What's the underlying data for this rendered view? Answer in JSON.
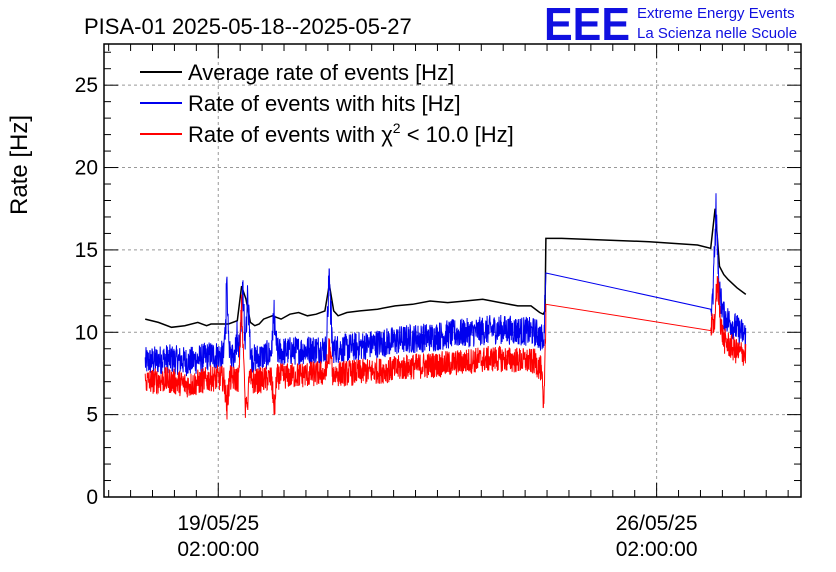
{
  "header": {
    "title": "PISA-01 2025-05-18--2025-05-27",
    "logo_letters": "EEE",
    "logo_line1": "Extreme Energy Events",
    "logo_line2": "La Scienza nelle Scuole"
  },
  "colors": {
    "average": "#000000",
    "hits": "#0000ee",
    "chi2": "#ff0000",
    "logo": "#1010e0"
  },
  "chart_data": {
    "type": "line",
    "ylabel": "Rate [Hz]",
    "xlabel": "",
    "ylim": [
      0,
      27.5
    ],
    "y_ticks": [
      0,
      5,
      10,
      15,
      20,
      25
    ],
    "y_tick_labels": [
      "0",
      "5",
      "10",
      "15",
      "20",
      "25"
    ],
    "x_unit": "days since 2025-05-18 00:00",
    "xlim": [
      -0.22,
      7.73
    ],
    "x_ticks": [
      1.0833,
      6.0833
    ],
    "x_tick_labels": [
      {
        "date": "19/05/25",
        "time": "02:00:00"
      },
      {
        "date": "26/05/25",
        "time": "02:00:00"
      }
    ],
    "grid": true,
    "legend_position": "top-left",
    "legend": [
      {
        "label": "Average rate of events [Hz]",
        "series": "average"
      },
      {
        "label": "Rate of events with hits [Hz]",
        "series": "hits"
      },
      {
        "label_prefix": "Rate of events with ",
        "label_symbol": "χ",
        "label_sup": "2",
        "label_suffix": " < 10.0 [Hz]",
        "series": "chi2"
      }
    ],
    "series": [
      {
        "key": "average",
        "name": "Average rate of events [Hz]",
        "x": [
          0.25,
          0.4,
          0.55,
          0.7,
          0.85,
          0.95,
          1.0,
          1.1,
          1.2,
          1.3,
          1.35,
          1.4,
          1.45,
          1.5,
          1.55,
          1.6,
          1.7,
          1.8,
          1.9,
          2.0,
          2.1,
          2.2,
          2.3,
          2.35,
          2.4,
          2.45,
          2.55,
          2.7,
          2.9,
          3.1,
          3.3,
          3.5,
          3.7,
          3.9,
          4.1,
          4.3,
          4.5,
          4.65,
          4.75,
          4.79,
          4.81,
          4.82,
          5.0,
          6.0,
          6.55,
          6.7,
          6.75,
          6.8,
          6.85,
          6.9,
          7.0,
          7.1
        ],
        "y": [
          10.8,
          10.6,
          10.3,
          10.4,
          10.6,
          10.4,
          10.5,
          10.5,
          10.5,
          10.7,
          12.8,
          12.0,
          10.6,
          10.4,
          10.5,
          10.8,
          11.0,
          10.8,
          11.1,
          11.2,
          11.0,
          11.1,
          11.3,
          12.9,
          11.3,
          11.0,
          11.2,
          11.3,
          11.4,
          11.6,
          11.7,
          11.9,
          11.8,
          11.9,
          12.0,
          11.8,
          11.6,
          11.6,
          11.2,
          11.1,
          11.3,
          15.7,
          15.7,
          15.5,
          15.3,
          15.1,
          17.5,
          14.0,
          13.5,
          13.2,
          12.7,
          12.3
        ]
      },
      {
        "key": "hits",
        "name": "Rate of events with hits [Hz]",
        "noise": 0.9,
        "spikes": [
          [
            1.18,
            13.2
          ],
          [
            1.3,
            10.5
          ],
          [
            1.36,
            13.5
          ],
          [
            1.42,
            13.0
          ],
          [
            1.72,
            11.2
          ],
          [
            2.35,
            14.8
          ],
          [
            4.82,
            14.6
          ],
          [
            6.76,
            18.5
          ]
        ],
        "x": [
          0.25,
          0.5,
          0.75,
          1.0,
          1.25,
          1.5,
          1.75,
          2.0,
          2.25,
          2.5,
          2.75,
          3.0,
          3.25,
          3.5,
          3.75,
          4.0,
          4.25,
          4.5,
          4.7,
          4.8,
          4.82,
          6.7,
          6.78,
          6.85,
          7.0,
          7.1
        ],
        "y": [
          8.2,
          8.4,
          8.2,
          8.6,
          8.6,
          8.4,
          8.8,
          8.9,
          9.0,
          9.0,
          9.2,
          9.4,
          9.6,
          9.7,
          9.9,
          10.0,
          10.2,
          10.1,
          10.0,
          9.5,
          13.6,
          11.4,
          13.0,
          11.0,
          10.2,
          9.8
        ]
      },
      {
        "key": "chi2",
        "name": "Rate of events with χ2 < 10.0 [Hz]",
        "noise": 0.8,
        "spikes": [
          [
            1.18,
            5.0
          ],
          [
            1.35,
            12.8
          ],
          [
            1.4,
            4.3
          ],
          [
            1.72,
            4.5
          ],
          [
            2.35,
            9.5
          ],
          [
            4.8,
            5.0
          ],
          [
            6.78,
            13.6
          ]
        ],
        "x": [
          0.25,
          0.5,
          0.75,
          1.0,
          1.25,
          1.5,
          1.75,
          2.0,
          2.25,
          2.5,
          2.75,
          3.0,
          3.25,
          3.5,
          3.75,
          4.0,
          4.25,
          4.5,
          4.7,
          4.8,
          4.82,
          6.7,
          6.78,
          6.85,
          7.0,
          7.1
        ],
        "y": [
          7.0,
          7.1,
          6.8,
          7.2,
          7.2,
          7.0,
          7.3,
          7.4,
          7.5,
          7.5,
          7.6,
          7.7,
          7.9,
          8.0,
          8.1,
          8.3,
          8.4,
          8.3,
          8.2,
          7.5,
          11.7,
          10.1,
          11.5,
          9.5,
          8.8,
          8.7
        ]
      }
    ]
  }
}
